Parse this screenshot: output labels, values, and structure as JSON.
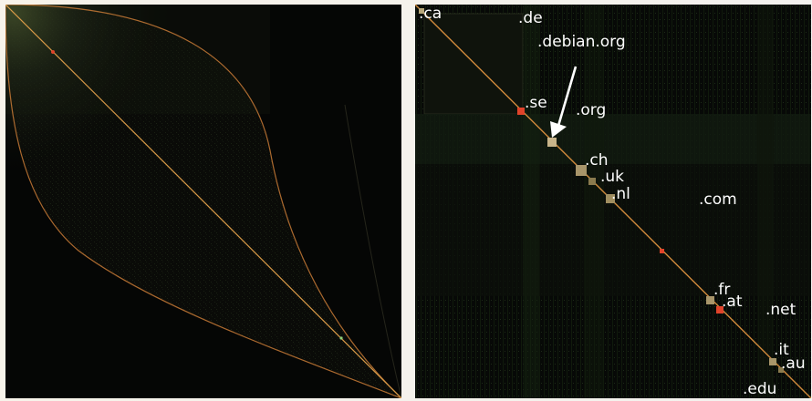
{
  "labels": {
    "ca": ".ca",
    "de": ".de",
    "debian_org": ".debian.org",
    "se": ".se",
    "org": ".org",
    "ch": ".ch",
    "uk": ".uk",
    "nl": ".nl",
    "com": ".com",
    "fr": ".fr",
    "at": ".at",
    "net": ".net",
    "it": ".it",
    "au": ".au",
    "edu": ".edu"
  },
  "colors": {
    "background": "#050605",
    "diagonal": "#d08a3c",
    "highlight": "#e0432a",
    "cluster": "#b8a87a",
    "label": "#ffffff"
  }
}
